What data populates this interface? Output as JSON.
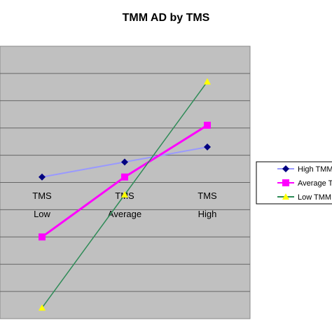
{
  "chart_data": {
    "type": "line",
    "title": "TMM AD by TMS",
    "xlabel": "",
    "ylabel": "",
    "categories": [
      "TMS Low",
      "TMS Average",
      "TMS High"
    ],
    "category_lines": [
      [
        "TMS",
        "Low"
      ],
      [
        "TMS",
        "Average"
      ],
      [
        "TMS",
        "High"
      ]
    ],
    "ylim": [
      0,
      10
    ],
    "grid": true,
    "legend_position": "right",
    "plot_background": "#c0c0c0",
    "series": [
      {
        "name": "High TMM",
        "legend_text": "High TMM",
        "values": [
          5.2,
          5.75,
          6.3
        ],
        "color": "#9999ff",
        "marker": "diamond",
        "marker_color": "#000080"
      },
      {
        "name": "Average TMM",
        "legend_text": "Average T",
        "values": [
          3.0,
          5.2,
          7.1
        ],
        "color": "#ff00ff",
        "marker": "square",
        "marker_color": "#ff00ff"
      },
      {
        "name": "Low TMM",
        "legend_text": "Low TMM",
        "values": [
          0.4,
          4.55,
          8.7
        ],
        "color": "#2e8b57",
        "marker": "triangle",
        "marker_color": "#ffff00"
      }
    ]
  }
}
